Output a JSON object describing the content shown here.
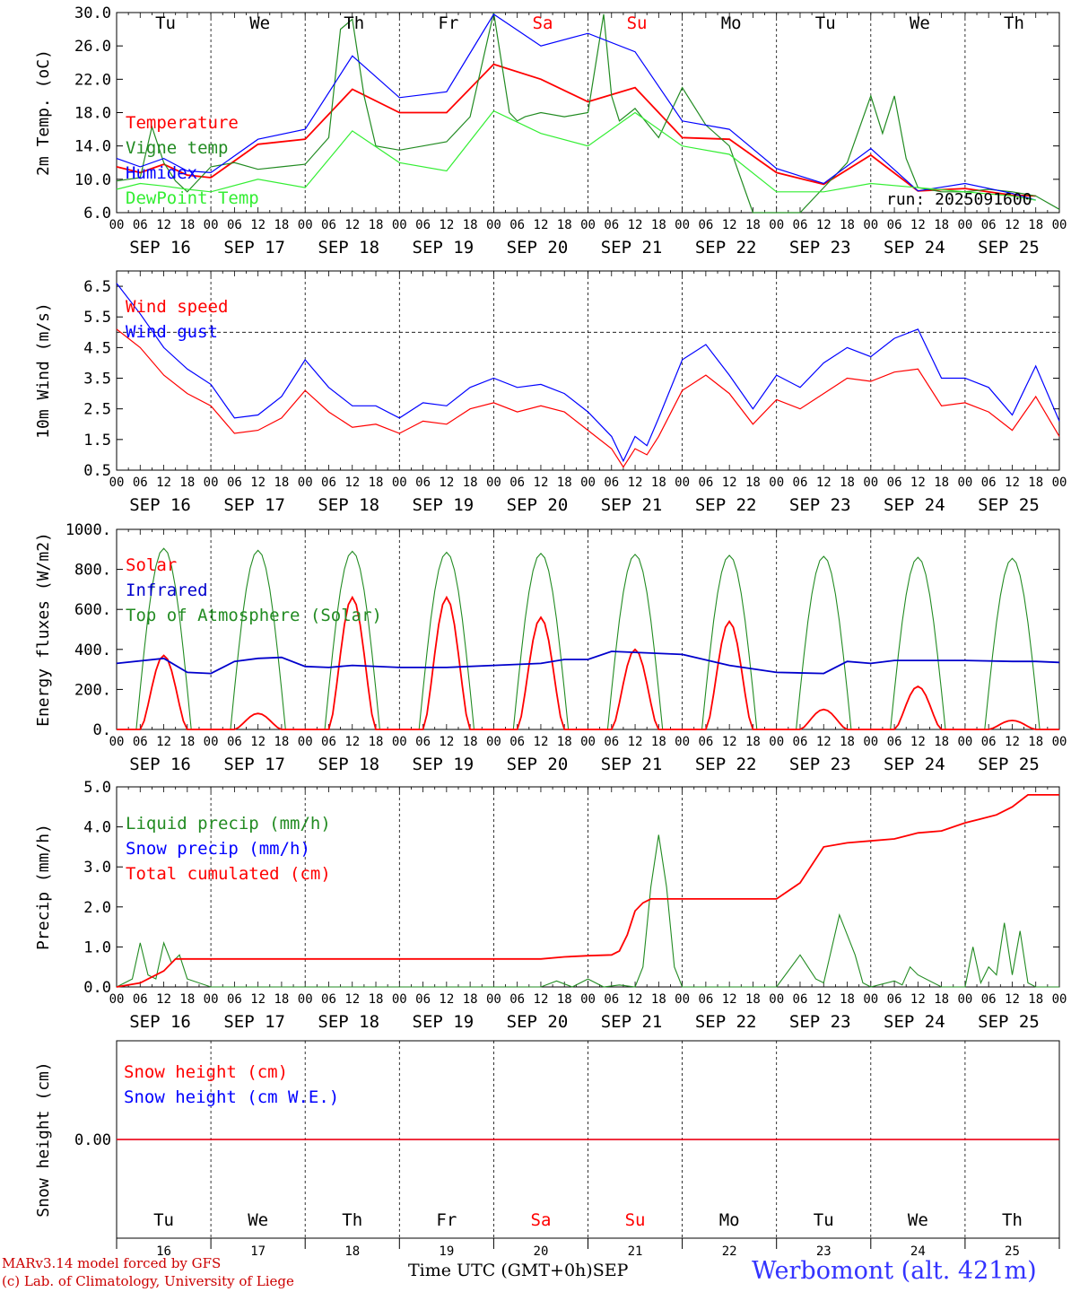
{
  "days": [
    "Tu",
    "We",
    "Th",
    "Fr",
    "Sa",
    "Su",
    "Mo",
    "Tu",
    "We",
    "Th"
  ],
  "day_colors": [
    "#000000",
    "#000000",
    "#000000",
    "#000000",
    "#ff0000",
    "#ff0000",
    "#000000",
    "#000000",
    "#000000",
    "#000000"
  ],
  "dates": [
    "SEP 16",
    "SEP 17",
    "SEP 18",
    "SEP 19",
    "SEP 20",
    "SEP 21",
    "SEP 22",
    "SEP 23",
    "SEP 24",
    "SEP 25"
  ],
  "hour_ticks": [
    "00",
    "06",
    "12",
    "18"
  ],
  "last_hour_tick": "00",
  "day_numbers": [
    "16",
    "17",
    "18",
    "19",
    "20",
    "21",
    "22",
    "23",
    "24",
    "25"
  ],
  "run_label": "run: 2025091600",
  "footer": {
    "model_line": "MARv3.14 model forced by GFS",
    "lab_line": "(c) Lab. of Climatology, University of Liege",
    "time_label": "Time UTC (GMT+0h)",
    "month_label": "SEP",
    "station": "Werbomont (alt. 421m)"
  },
  "colors": {
    "red": "#ff0000",
    "green": "#228b22",
    "blue": "#0000ff",
    "lime": "#33ee33",
    "darkblue": "#0000cc"
  },
  "chart_data": [
    {
      "type": "line",
      "ylabel": "2m Temp. (oC)",
      "ylim": [
        6.0,
        30.0
      ],
      "yticks": [
        "30.0",
        "26.0",
        "22.0",
        "18.0",
        "14.0",
        "10.0",
        "6.0"
      ],
      "series": [
        {
          "name": "Temperature",
          "color": "#ff0000",
          "x": [
            0,
            6,
            12,
            18,
            24,
            36,
            48,
            60,
            72,
            84,
            96,
            108,
            120,
            132,
            144,
            156,
            168,
            180,
            192,
            204,
            216,
            228,
            234
          ],
          "values": [
            11.5,
            10.8,
            11.8,
            10.5,
            10.2,
            14.2,
            14.8,
            20.8,
            18.0,
            18.0,
            23.8,
            22.0,
            19.3,
            21.0,
            15.0,
            14.8,
            10.8,
            9.4,
            12.9,
            8.6,
            8.9,
            8.1,
            8.0
          ]
        },
        {
          "name": "Vigne temp",
          "color": "#228b22",
          "x": [
            0,
            6,
            9,
            12,
            15,
            18,
            24,
            30,
            36,
            42,
            48,
            54,
            57,
            60,
            63,
            66,
            72,
            78,
            84,
            90,
            96,
            100,
            102,
            104,
            108,
            114,
            120,
            124,
            126,
            128,
            132,
            138,
            144,
            150,
            156,
            162,
            168,
            174,
            180,
            186,
            192,
            195,
            198,
            201,
            204,
            210,
            216,
            222,
            228,
            234,
            240
          ],
          "values": [
            9.8,
            10.2,
            16.3,
            12.0,
            9.8,
            8.5,
            11.5,
            12.0,
            11.2,
            11.5,
            11.8,
            15.0,
            28.0,
            29.2,
            20.0,
            14.0,
            13.5,
            14.0,
            14.5,
            17.5,
            30.0,
            18.0,
            17.0,
            17.5,
            18.0,
            17.5,
            18.0,
            29.8,
            20.0,
            17.0,
            18.5,
            15.0,
            21.0,
            16.5,
            14.0,
            6.0,
            4.0,
            6.0,
            9.0,
            12.0,
            20.0,
            15.5,
            20.0,
            12.5,
            9.0,
            8.5,
            8.5,
            8.8,
            8.5,
            8.0,
            6.4
          ]
        },
        {
          "name": "Humidex",
          "color": "#0000ff",
          "x": [
            0,
            6,
            12,
            18,
            24,
            36,
            48,
            60,
            72,
            84,
            96,
            108,
            120,
            132,
            144,
            156,
            168,
            180,
            192,
            204,
            216,
            228,
            234
          ],
          "values": [
            12.5,
            11.5,
            12.5,
            11.0,
            10.8,
            14.8,
            16.0,
            24.8,
            19.8,
            20.5,
            29.8,
            26.0,
            27.5,
            25.3,
            17.0,
            16.0,
            11.3,
            9.5,
            13.7,
            8.6,
            9.5,
            8.3,
            7.5
          ]
        },
        {
          "name": "DewPoint Temp",
          "color": "#33ee33",
          "x": [
            0,
            6,
            12,
            18,
            24,
            36,
            48,
            60,
            72,
            84,
            96,
            108,
            120,
            132,
            144,
            156,
            168,
            180,
            192,
            204,
            216,
            228,
            234
          ],
          "values": [
            8.8,
            9.5,
            9.2,
            8.8,
            8.5,
            10.0,
            9.0,
            15.8,
            12.0,
            11.0,
            18.2,
            15.5,
            14.0,
            18.0,
            14.0,
            13.0,
            8.5,
            8.5,
            9.5,
            9.0,
            8.5,
            8.0,
            7.5
          ]
        }
      ]
    },
    {
      "type": "line",
      "ylabel": "10m Wind (m/s)",
      "ylim": [
        0.5,
        7.0
      ],
      "yticks": [
        "6.5",
        "5.5",
        "4.5",
        "3.5",
        "2.5",
        "1.5",
        "0.5"
      ],
      "reference_line": 5.0,
      "series": [
        {
          "name": "Wind speed",
          "color": "#ff0000",
          "x": [
            0,
            6,
            12,
            18,
            24,
            30,
            36,
            42,
            48,
            54,
            60,
            66,
            72,
            78,
            84,
            90,
            96,
            102,
            108,
            114,
            120,
            126,
            129,
            132,
            135,
            138,
            144,
            150,
            156,
            162,
            168,
            174,
            180,
            186,
            192,
            198,
            204,
            210,
            216,
            222,
            228,
            234,
            240
          ],
          "values": [
            5.1,
            4.5,
            3.6,
            3.0,
            2.6,
            1.7,
            1.8,
            2.2,
            3.1,
            2.4,
            1.9,
            2.0,
            1.7,
            2.1,
            2.0,
            2.5,
            2.7,
            2.4,
            2.6,
            2.4,
            1.8,
            1.2,
            0.6,
            1.2,
            1.0,
            1.6,
            3.1,
            3.6,
            3.0,
            2.0,
            2.8,
            2.5,
            3.0,
            3.5,
            3.4,
            3.7,
            3.8,
            2.6,
            2.7,
            2.4,
            1.8,
            2.9,
            1.6
          ]
        },
        {
          "name": "Wind gust",
          "color": "#0000ff",
          "x": [
            0,
            6,
            12,
            18,
            24,
            30,
            36,
            42,
            48,
            54,
            60,
            66,
            72,
            78,
            84,
            90,
            96,
            102,
            108,
            114,
            120,
            126,
            129,
            132,
            135,
            138,
            144,
            150,
            156,
            162,
            168,
            174,
            180,
            186,
            192,
            198,
            204,
            210,
            216,
            222,
            228,
            234,
            240
          ],
          "values": [
            6.6,
            5.6,
            4.5,
            3.8,
            3.3,
            2.2,
            2.3,
            2.9,
            4.1,
            3.2,
            2.6,
            2.6,
            2.2,
            2.7,
            2.6,
            3.2,
            3.5,
            3.2,
            3.3,
            3.0,
            2.4,
            1.6,
            0.8,
            1.6,
            1.3,
            2.2,
            4.1,
            4.6,
            3.6,
            2.5,
            3.6,
            3.2,
            4.0,
            4.5,
            4.2,
            4.8,
            5.1,
            3.5,
            3.5,
            3.2,
            2.3,
            3.9,
            2.1
          ]
        }
      ]
    },
    {
      "type": "line",
      "ylabel": "Energy fluxes (W/m2)",
      "ylim": [
        0,
        1000
      ],
      "yticks": [
        "1000.",
        "800.",
        "600.",
        "400.",
        "200.",
        "0."
      ],
      "solar_peaks": [
        370,
        80,
        660,
        660,
        560,
        400,
        540,
        100,
        215,
        45
      ],
      "toa_peaks": [
        905,
        895,
        890,
        885,
        880,
        875,
        870,
        865,
        860,
        855
      ],
      "series": [
        {
          "name": "Solar",
          "color": "#ff0000"
        },
        {
          "name": "Infrared",
          "color": "#0000cc",
          "x": [
            0,
            12,
            18,
            24,
            30,
            36,
            42,
            48,
            54,
            60,
            72,
            84,
            96,
            108,
            114,
            120,
            126,
            132,
            144,
            156,
            168,
            180,
            186,
            192,
            198,
            204,
            216,
            228,
            234,
            240
          ],
          "values": [
            330,
            355,
            285,
            280,
            340,
            355,
            360,
            315,
            310,
            320,
            310,
            310,
            320,
            330,
            350,
            350,
            390,
            385,
            375,
            320,
            285,
            280,
            340,
            330,
            345,
            345,
            345,
            340,
            340,
            335
          ]
        },
        {
          "name": "Top of Atmosphere (Solar)",
          "color": "#228b22"
        }
      ]
    },
    {
      "type": "line",
      "ylabel": "Precip (mm/h)",
      "ylim": [
        0,
        5.0
      ],
      "yticks": [
        "5.0",
        "4.0",
        "3.0",
        "2.0",
        "1.0",
        "0.0"
      ],
      "series": [
        {
          "name": "Liquid precip (mm/h)",
          "color": "#228b22",
          "x": [
            0,
            4,
            6,
            8,
            10,
            12,
            14,
            16,
            18,
            24,
            108,
            112,
            116,
            120,
            124,
            128,
            132,
            134,
            136,
            138,
            140,
            142,
            144,
            146,
            150,
            168,
            174,
            178,
            180,
            184,
            188,
            190,
            192,
            198,
            200,
            202,
            204,
            210,
            216,
            218,
            220,
            222,
            224,
            226,
            228,
            230,
            232,
            234,
            236,
            240
          ],
          "values": [
            0.0,
            0.2,
            1.1,
            0.3,
            0.2,
            1.1,
            0.6,
            0.8,
            0.2,
            0.0,
            0.0,
            0.15,
            0.0,
            0.2,
            0.0,
            0.05,
            0.0,
            0.5,
            2.5,
            3.8,
            2.5,
            0.5,
            0.0,
            0.0,
            0.0,
            0.0,
            0.8,
            0.2,
            0.1,
            1.8,
            0.8,
            0.1,
            0.0,
            0.15,
            0.05,
            0.5,
            0.3,
            0.0,
            0.0,
            1.0,
            0.1,
            0.5,
            0.3,
            1.6,
            0.3,
            1.4,
            0.1,
            0.0,
            0.0,
            0.0
          ]
        },
        {
          "name": "Snow precip (mm/h)",
          "color": "#0000ff"
        },
        {
          "name": "Total cumulated (cm)",
          "color": "#ff0000",
          "x": [
            0,
            6,
            12,
            15,
            18,
            108,
            114,
            120,
            126,
            128,
            130,
            132,
            134,
            136,
            144,
            168,
            174,
            180,
            186,
            192,
            198,
            204,
            210,
            216,
            220,
            224,
            228,
            232,
            234,
            236,
            240
          ],
          "values": [
            0.0,
            0.1,
            0.4,
            0.7,
            0.7,
            0.7,
            0.75,
            0.78,
            0.8,
            0.9,
            1.3,
            1.9,
            2.1,
            2.2,
            2.2,
            2.2,
            2.6,
            3.5,
            3.6,
            3.65,
            3.7,
            3.85,
            3.9,
            4.1,
            4.2,
            4.3,
            4.5,
            4.8,
            4.8,
            4.8,
            4.8
          ]
        }
      ]
    },
    {
      "type": "line",
      "ylabel": "Snow height (cm)",
      "yticks": [
        "0.00"
      ],
      "series": [
        {
          "name": "Snow height (cm)",
          "color": "#ff0000",
          "constant": 0.0
        },
        {
          "name": "Snow height (cm W.E.)",
          "color": "#0000ff",
          "constant": 0.0
        }
      ]
    }
  ]
}
